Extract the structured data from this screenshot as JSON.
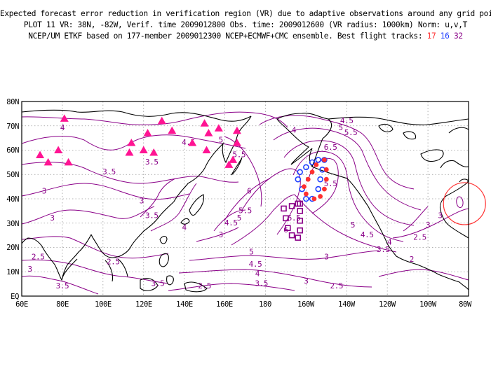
{
  "header": {
    "line1": "Expected forecast error reduction in verification region (VR) due to adaptive observations around any grid point.",
    "line2": "PLOT 11 VR: 38N, -82W, Verif. time 2009012800 Obs. time: 2009012600 (VR radius: 1000km) Norm: u,v,T",
    "line3_prefix": "NCEP/UM ETKF based on 177-member 2009012300 NCEP+ECMWF+CMC ensemble. Best flight tracks:",
    "track_red": "17",
    "track_blue": "16",
    "track_purple": "32"
  },
  "axes": {
    "lat_ticks": [
      "80N",
      "70N",
      "60N",
      "50N",
      "40N",
      "30N",
      "20N",
      "10N",
      "EQ"
    ],
    "lon_ticks": [
      "60E",
      "80E",
      "100E",
      "120E",
      "140E",
      "160E",
      "180",
      "160W",
      "140W",
      "120W",
      "100W",
      "80W"
    ]
  },
  "colors": {
    "contour": "#8a0088",
    "coast": "#000000",
    "grid": "#9a9a9a",
    "triangle": "#ff1493",
    "track_red": "#ff3030",
    "track_blue": "#2040ff",
    "track_purple": "#8a0088",
    "vr_circle": "#ff3030"
  },
  "contour_labels": [
    {
      "text": "4.5",
      "lon": -140,
      "lat": 72
    },
    {
      "text": "5",
      "lon": -143,
      "lat": 69
    },
    {
      "text": "5.5",
      "lon": -138,
      "lat": 67
    },
    {
      "text": "4",
      "lon": -166,
      "lat": 68
    },
    {
      "text": "6.5",
      "lon": -148,
      "lat": 61
    },
    {
      "text": "5.5",
      "lon": -148,
      "lat": 46
    },
    {
      "text": "6",
      "lon": 172,
      "lat": 43
    },
    {
      "text": "5.5",
      "lon": 170,
      "lat": 35
    },
    {
      "text": "5",
      "lon": 167,
      "lat": 32
    },
    {
      "text": "4.5",
      "lon": 163,
      "lat": 30
    },
    {
      "text": "6.5",
      "lon": -166,
      "lat": 32
    },
    {
      "text": "6",
      "lon": -170,
      "lat": 27
    },
    {
      "text": "5",
      "lon": -137,
      "lat": 29
    },
    {
      "text": "4.5",
      "lon": -130,
      "lat": 25
    },
    {
      "text": "4",
      "lon": -119,
      "lat": 22
    },
    {
      "text": "3.5",
      "lon": -122,
      "lat": 19
    },
    {
      "text": "2.5",
      "lon": -104,
      "lat": 24
    },
    {
      "text": "3",
      "lon": -100,
      "lat": 29
    },
    {
      "text": "2",
      "lon": -108,
      "lat": 15
    },
    {
      "text": "3",
      "lon": -150,
      "lat": 16
    },
    {
      "text": "5",
      "lon": 173,
      "lat": 18
    },
    {
      "text": "4.5",
      "lon": 175,
      "lat": 13
    },
    {
      "text": "4",
      "lon": 176,
      "lat": 9
    },
    {
      "text": "3.5",
      "lon": 178,
      "lat": 5
    },
    {
      "text": "3",
      "lon": -160,
      "lat": 6
    },
    {
      "text": "2.5",
      "lon": -145,
      "lat": 4
    },
    {
      "text": "3",
      "lon": 158,
      "lat": 25
    },
    {
      "text": "4",
      "lon": 140,
      "lat": 28
    },
    {
      "text": "2.5",
      "lon": 150,
      "lat": 4
    },
    {
      "text": "3.5",
      "lon": 127,
      "lat": 5
    },
    {
      "text": "2.5",
      "lon": 105,
      "lat": 14
    },
    {
      "text": "2.5",
      "lon": 68,
      "lat": 16
    },
    {
      "text": "3",
      "lon": 64,
      "lat": 11
    },
    {
      "text": "3.5",
      "lon": 80,
      "lat": 4
    },
    {
      "text": "3",
      "lon": 75,
      "lat": 32
    },
    {
      "text": "3",
      "lon": 71,
      "lat": 43
    },
    {
      "text": "3.5",
      "lon": 103,
      "lat": 51
    },
    {
      "text": "3.5",
      "lon": 124,
      "lat": 55
    },
    {
      "text": "3",
      "lon": 119,
      "lat": 39
    },
    {
      "text": "3.5",
      "lon": 124,
      "lat": 33
    },
    {
      "text": "4",
      "lon": 80,
      "lat": 69
    },
    {
      "text": "4.5",
      "lon": 142,
      "lat": 63
    },
    {
      "text": "5",
      "lon": 158,
      "lat": 64
    },
    {
      "text": "5.5",
      "lon": 167,
      "lat": 58
    },
    {
      "text": "3",
      "lon": -94,
      "lat": 33
    }
  ],
  "triangles": [
    {
      "lon": 81,
      "lat": 73
    },
    {
      "lon": 69,
      "lat": 58
    },
    {
      "lon": 78,
      "lat": 60
    },
    {
      "lon": 73,
      "lat": 55
    },
    {
      "lon": 83,
      "lat": 55
    },
    {
      "lon": 114,
      "lat": 63
    },
    {
      "lon": 113,
      "lat": 59
    },
    {
      "lon": 120,
      "lat": 60
    },
    {
      "lon": 125,
      "lat": 59
    },
    {
      "lon": 122,
      "lat": 67
    },
    {
      "lon": 129,
      "lat": 72
    },
    {
      "lon": 134,
      "lat": 68
    },
    {
      "lon": 144,
      "lat": 63
    },
    {
      "lon": 150,
      "lat": 71
    },
    {
      "lon": 152,
      "lat": 67
    },
    {
      "lon": 157,
      "lat": 69
    },
    {
      "lon": 166,
      "lat": 68
    },
    {
      "lon": 166,
      "lat": 63
    },
    {
      "lon": 151,
      "lat": 60
    },
    {
      "lon": 164,
      "lat": 56
    },
    {
      "lon": 162,
      "lat": 54
    }
  ],
  "flight_tracks": {
    "red": [
      {
        "lon": -151,
        "lat": 56
      },
      {
        "lon": -150,
        "lat": 52
      },
      {
        "lon": -150,
        "lat": 48
      },
      {
        "lon": -151,
        "lat": 44
      },
      {
        "lon": -153,
        "lat": 41
      },
      {
        "lon": -156,
        "lat": 40
      },
      {
        "lon": -160,
        "lat": 42
      },
      {
        "lon": -161,
        "lat": 45
      },
      {
        "lon": -159,
        "lat": 48
      },
      {
        "lon": -157,
        "lat": 51
      },
      {
        "lon": -155,
        "lat": 54
      }
    ],
    "blue": [
      {
        "lon": -151,
        "lat": 56
      },
      {
        "lon": -152,
        "lat": 52
      },
      {
        "lon": -153,
        "lat": 48
      },
      {
        "lon": -154,
        "lat": 44
      },
      {
        "lon": -157,
        "lat": 40
      },
      {
        "lon": -160,
        "lat": 40
      },
      {
        "lon": -162,
        "lat": 44
      },
      {
        "lon": -164,
        "lat": 48
      },
      {
        "lon": -163,
        "lat": 51
      },
      {
        "lon": -160,
        "lat": 53
      },
      {
        "lon": -157,
        "lat": 55
      },
      {
        "lon": -154,
        "lat": 56
      }
    ],
    "purple": [
      {
        "lon": -171,
        "lat": 36
      },
      {
        "lon": -170,
        "lat": 32
      },
      {
        "lon": -169,
        "lat": 28
      },
      {
        "lon": -167,
        "lat": 25
      },
      {
        "lon": -164,
        "lat": 24
      },
      {
        "lon": -163,
        "lat": 27
      },
      {
        "lon": -163,
        "lat": 31
      },
      {
        "lon": -163,
        "lat": 35
      },
      {
        "lon": -164,
        "lat": 38
      },
      {
        "lon": -167,
        "lat": 37
      },
      {
        "lon": -163,
        "lat": 38
      }
    ]
  },
  "verification_region": {
    "lat": 38,
    "lon": -82,
    "radius_km": 1000
  }
}
